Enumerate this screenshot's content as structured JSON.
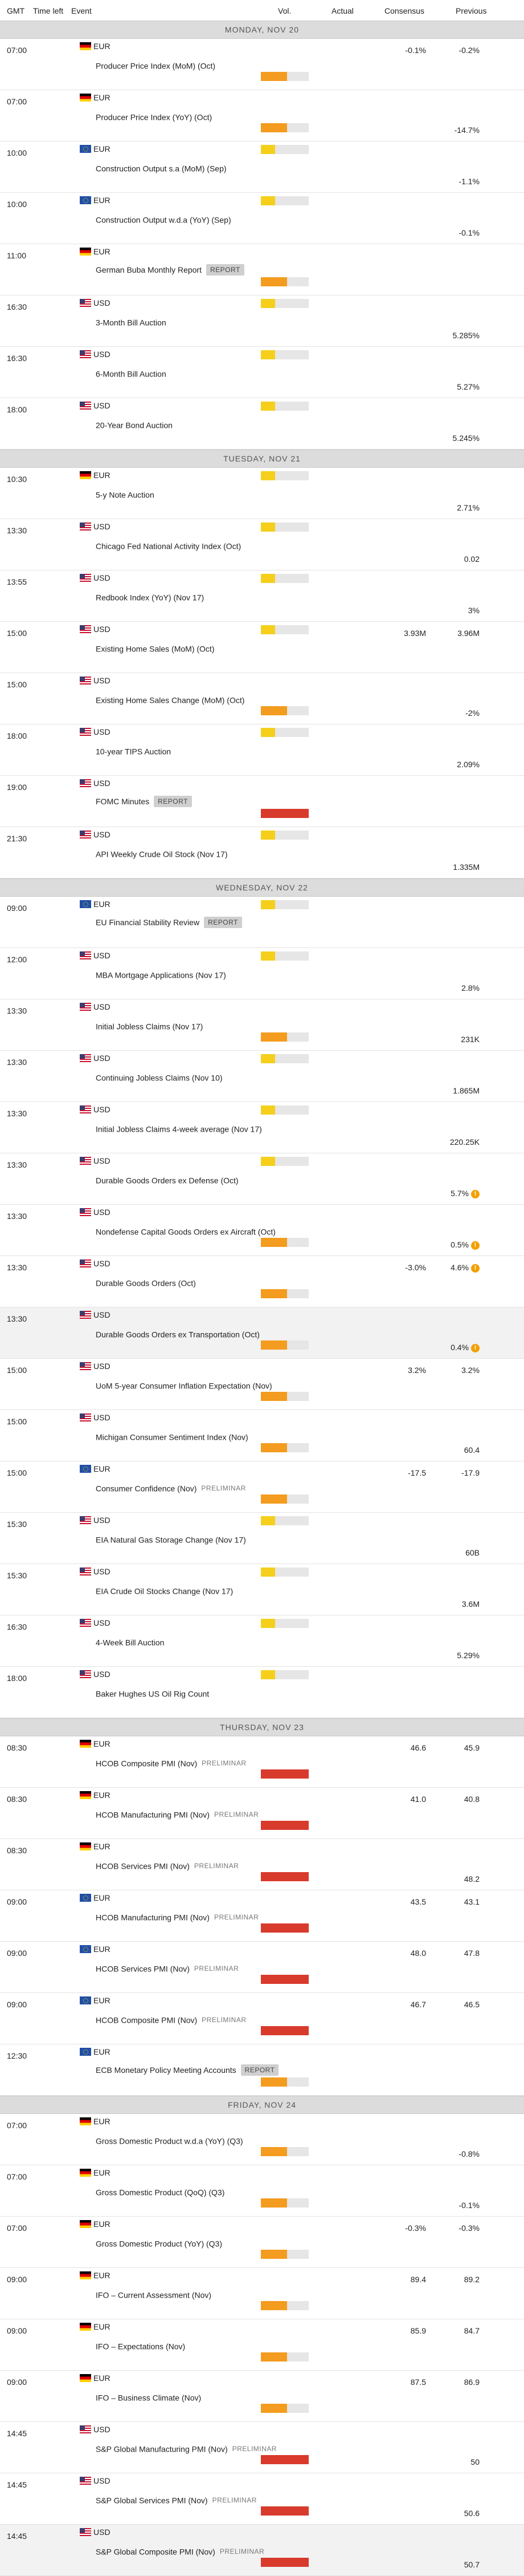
{
  "header": {
    "gmt": "GMT",
    "time_left": "Time left",
    "event": "Event",
    "vol": "Vol.",
    "actual": "Actual",
    "consensus": "Consensus",
    "previous": "Previous"
  },
  "days": [
    {
      "label": "MONDAY, NOV 20",
      "events": [
        {
          "time": "07:00",
          "flag": "de",
          "currency": "EUR",
          "name": "Producer Price Index (MoM) (Oct)",
          "tag": "",
          "volume": "medium",
          "consensus": "-0.1%",
          "previous": "-0.2%"
        },
        {
          "time": "07:00",
          "flag": "de",
          "currency": "EUR",
          "name": "Producer Price Index (YoY) (Oct)",
          "tag": "",
          "volume": "medium",
          "consensus": "",
          "previous": "-14.7%"
        },
        {
          "time": "10:00",
          "flag": "eu",
          "currency": "EUR",
          "name": "Construction Output s.a (MoM) (Sep)",
          "tag": "",
          "volume": "low",
          "consensus": "",
          "previous": "-1.1%"
        },
        {
          "time": "10:00",
          "flag": "eu",
          "currency": "EUR",
          "name": "Construction Output w.d.a (YoY) (Sep)",
          "tag": "",
          "volume": "low",
          "consensus": "",
          "previous": "-0.1%"
        },
        {
          "time": "11:00",
          "flag": "de",
          "currency": "EUR",
          "name": "German Buba Monthly Report",
          "tag": "REPORT",
          "volume": "medium",
          "consensus": "",
          "previous": ""
        },
        {
          "time": "16:30",
          "flag": "us",
          "currency": "USD",
          "name": "3-Month Bill Auction",
          "tag": "",
          "volume": "low",
          "consensus": "",
          "previous": "5.285%"
        },
        {
          "time": "16:30",
          "flag": "us",
          "currency": "USD",
          "name": "6-Month Bill Auction",
          "tag": "",
          "volume": "low",
          "consensus": "",
          "previous": "5.27%"
        },
        {
          "time": "18:00",
          "flag": "us",
          "currency": "USD",
          "name": "20-Year Bond Auction",
          "tag": "",
          "volume": "low",
          "consensus": "",
          "previous": "5.245%"
        }
      ]
    },
    {
      "label": "TUESDAY, NOV 21",
      "events": [
        {
          "time": "10:30",
          "flag": "de",
          "currency": "EUR",
          "name": "5-y Note Auction",
          "tag": "",
          "volume": "low",
          "consensus": "",
          "previous": "2.71%"
        },
        {
          "time": "13:30",
          "flag": "us",
          "currency": "USD",
          "name": "Chicago Fed National Activity Index (Oct)",
          "tag": "",
          "volume": "low",
          "consensus": "",
          "previous": "0.02"
        },
        {
          "time": "13:55",
          "flag": "us",
          "currency": "USD",
          "name": "Redbook Index (YoY) (Nov 17)",
          "tag": "",
          "volume": "low",
          "consensus": "",
          "previous": "3%"
        },
        {
          "time": "15:00",
          "flag": "us",
          "currency": "USD",
          "name": "Existing Home Sales (MoM) (Oct)",
          "tag": "",
          "volume": "low",
          "consensus": "3.93M",
          "previous": "3.96M"
        },
        {
          "time": "15:00",
          "flag": "us",
          "currency": "USD",
          "name": "Existing Home Sales Change (MoM) (Oct)",
          "tag": "",
          "volume": "medium",
          "consensus": "",
          "previous": "-2%"
        },
        {
          "time": "18:00",
          "flag": "us",
          "currency": "USD",
          "name": "10-year TIPS Auction",
          "tag": "",
          "volume": "low",
          "consensus": "",
          "previous": "2.09%"
        },
        {
          "time": "19:00",
          "flag": "us",
          "currency": "USD",
          "name": "FOMC Minutes",
          "tag": "REPORT",
          "volume": "high",
          "consensus": "",
          "previous": ""
        },
        {
          "time": "21:30",
          "flag": "us",
          "currency": "USD",
          "name": "API Weekly Crude Oil Stock (Nov 17)",
          "tag": "",
          "volume": "low",
          "consensus": "",
          "previous": "1.335M"
        }
      ]
    },
    {
      "label": "WEDNESDAY, NOV 22",
      "events": [
        {
          "time": "09:00",
          "flag": "eu",
          "currency": "EUR",
          "name": "EU Financial Stability Review",
          "tag": "REPORT",
          "volume": "low",
          "consensus": "",
          "previous": ""
        },
        {
          "time": "12:00",
          "flag": "us",
          "currency": "USD",
          "name": "MBA Mortgage Applications (Nov 17)",
          "tag": "",
          "volume": "low",
          "consensus": "",
          "previous": "2.8%"
        },
        {
          "time": "13:30",
          "flag": "us",
          "currency": "USD",
          "name": "Initial Jobless Claims (Nov 17)",
          "tag": "",
          "volume": "medium",
          "consensus": "",
          "previous": "231K"
        },
        {
          "time": "13:30",
          "flag": "us",
          "currency": "USD",
          "name": "Continuing Jobless Claims (Nov 10)",
          "tag": "",
          "volume": "low",
          "consensus": "",
          "previous": "1.865M"
        },
        {
          "time": "13:30",
          "flag": "us",
          "currency": "USD",
          "name": "Initial Jobless Claims 4-week average (Nov 17)",
          "tag": "",
          "volume": "low",
          "consensus": "",
          "previous": "220.25K"
        },
        {
          "time": "13:30",
          "flag": "us",
          "currency": "USD",
          "name": "Durable Goods Orders ex Defense (Oct)",
          "tag": "",
          "volume": "low",
          "consensus": "",
          "previous": "5.7%",
          "warn": "!"
        },
        {
          "time": "13:30",
          "flag": "us",
          "currency": "USD",
          "name": "Nondefense Capital Goods Orders ex Aircraft (Oct)",
          "tag": "",
          "volume": "medium",
          "consensus": "",
          "previous": "0.5%",
          "warn": "!"
        },
        {
          "time": "13:30",
          "flag": "us",
          "currency": "USD",
          "name": "Durable Goods Orders (Oct)",
          "tag": "",
          "volume": "medium",
          "consensus": "-3.0%",
          "previous": "4.6%",
          "warn": "!"
        },
        {
          "time": "13:30",
          "flag": "us",
          "currency": "USD",
          "name": "Durable Goods Orders ex Transportation (Oct)",
          "tag": "",
          "volume": "medium",
          "consensus": "",
          "previous": "0.4%",
          "warn": "!",
          "shaded": true
        },
        {
          "time": "15:00",
          "flag": "us",
          "currency": "USD",
          "name": "UoM 5-year Consumer Inflation Expectation (Nov)",
          "tag": "",
          "volume": "medium",
          "consensus": "3.2%",
          "previous": "3.2%"
        },
        {
          "time": "15:00",
          "flag": "us",
          "currency": "USD",
          "name": "Michigan Consumer Sentiment Index (Nov)",
          "tag": "",
          "volume": "medium",
          "consensus": "",
          "previous": "60.4"
        },
        {
          "time": "15:00",
          "flag": "eu",
          "currency": "EUR",
          "name": "Consumer Confidence (Nov)",
          "tag": "PRELIMINAR",
          "volume": "medium",
          "consensus": "-17.5",
          "previous": "-17.9"
        },
        {
          "time": "15:30",
          "flag": "us",
          "currency": "USD",
          "name": "EIA Natural Gas Storage Change (Nov 17)",
          "tag": "",
          "volume": "low",
          "consensus": "",
          "previous": "60B"
        },
        {
          "time": "15:30",
          "flag": "us",
          "currency": "USD",
          "name": "EIA Crude Oil Stocks Change (Nov 17)",
          "tag": "",
          "volume": "low",
          "consensus": "",
          "previous": "3.6M"
        },
        {
          "time": "16:30",
          "flag": "us",
          "currency": "USD",
          "name": "4-Week Bill Auction",
          "tag": "",
          "volume": "low",
          "consensus": "",
          "previous": "5.29%"
        },
        {
          "time": "18:00",
          "flag": "us",
          "currency": "USD",
          "name": "Baker Hughes US Oil Rig Count",
          "tag": "",
          "volume": "low",
          "consensus": "",
          "previous": ""
        }
      ]
    },
    {
      "label": "THURSDAY, NOV 23",
      "events": [
        {
          "time": "08:30",
          "flag": "de",
          "currency": "EUR",
          "name": "HCOB Composite PMI (Nov)",
          "tag": "PRELIMINAR",
          "volume": "high",
          "consensus": "46.6",
          "previous": "45.9"
        },
        {
          "time": "08:30",
          "flag": "de",
          "currency": "EUR",
          "name": "HCOB Manufacturing PMI (Nov)",
          "tag": "PRELIMINAR",
          "volume": "high",
          "consensus": "41.0",
          "previous": "40.8"
        },
        {
          "time": "08:30",
          "flag": "de",
          "currency": "EUR",
          "name": "HCOB Services PMI (Nov)",
          "tag": "PRELIMINAR",
          "volume": "high",
          "consensus": "",
          "previous": "48.2"
        },
        {
          "time": "09:00",
          "flag": "eu",
          "currency": "EUR",
          "name": "HCOB Manufacturing PMI (Nov)",
          "tag": "PRELIMINAR",
          "volume": "high",
          "consensus": "43.5",
          "previous": "43.1"
        },
        {
          "time": "09:00",
          "flag": "eu",
          "currency": "EUR",
          "name": "HCOB Services PMI (Nov)",
          "tag": "PRELIMINAR",
          "volume": "high",
          "consensus": "48.0",
          "previous": "47.8"
        },
        {
          "time": "09:00",
          "flag": "eu",
          "currency": "EUR",
          "name": "HCOB Composite PMI (Nov)",
          "tag": "PRELIMINAR",
          "volume": "high",
          "consensus": "46.7",
          "previous": "46.5"
        },
        {
          "time": "12:30",
          "flag": "eu",
          "currency": "EUR",
          "name": "ECB Monetary Policy Meeting Accounts",
          "tag": "REPORT",
          "volume": "medium",
          "consensus": "",
          "previous": ""
        }
      ]
    },
    {
      "label": "FRIDAY, NOV 24",
      "events": [
        {
          "time": "07:00",
          "flag": "de",
          "currency": "EUR",
          "name": "Gross Domestic Product w.d.a (YoY) (Q3)",
          "tag": "",
          "volume": "medium",
          "consensus": "",
          "previous": "-0.8%"
        },
        {
          "time": "07:00",
          "flag": "de",
          "currency": "EUR",
          "name": "Gross Domestic Product (QoQ) (Q3)",
          "tag": "",
          "volume": "medium",
          "consensus": "",
          "previous": "-0.1%"
        },
        {
          "time": "07:00",
          "flag": "de",
          "currency": "EUR",
          "name": "Gross Domestic Product (YoY) (Q3)",
          "tag": "",
          "volume": "medium",
          "consensus": "-0.3%",
          "previous": "-0.3%"
        },
        {
          "time": "09:00",
          "flag": "de",
          "currency": "EUR",
          "name": "IFO – Current Assessment (Nov)",
          "tag": "",
          "volume": "medium",
          "consensus": "89.4",
          "previous": "89.2"
        },
        {
          "time": "09:00",
          "flag": "de",
          "currency": "EUR",
          "name": "IFO – Expectations (Nov)",
          "tag": "",
          "volume": "medium",
          "consensus": "85.9",
          "previous": "84.7"
        },
        {
          "time": "09:00",
          "flag": "de",
          "currency": "EUR",
          "name": "IFO – Business Climate (Nov)",
          "tag": "",
          "volume": "medium",
          "consensus": "87.5",
          "previous": "86.9"
        },
        {
          "time": "14:45",
          "flag": "us",
          "currency": "USD",
          "name": "S&P Global Manufacturing PMI (Nov)",
          "tag": "PRELIMINAR",
          "volume": "high",
          "consensus": "",
          "previous": "50"
        },
        {
          "time": "14:45",
          "flag": "us",
          "currency": "USD",
          "name": "S&P Global Services PMI (Nov)",
          "tag": "PRELIMINAR",
          "volume": "high",
          "consensus": "",
          "previous": "50.6"
        },
        {
          "time": "14:45",
          "flag": "us",
          "currency": "USD",
          "name": "S&P Global Composite PMI (Nov)",
          "tag": "PRELIMINAR",
          "volume": "high",
          "consensus": "",
          "previous": "50.7",
          "shaded": true
        }
      ]
    }
  ]
}
